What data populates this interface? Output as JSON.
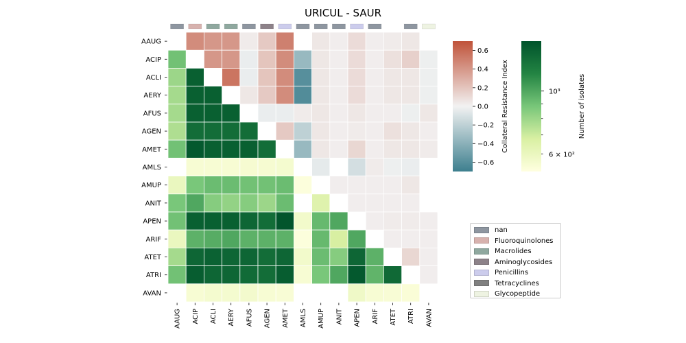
{
  "chart_data": {
    "type": "heatmap",
    "title": "URICUL - SAUR",
    "labels": [
      "AAUG",
      "ACIP",
      "ACLI",
      "AERY",
      "AFUS",
      "AGEN",
      "AMET",
      "AMLS",
      "AMUP",
      "ANIT",
      "APEN",
      "ARIF",
      "ATET",
      "ATRI",
      "AVAN"
    ],
    "class_strip": [
      "nan",
      "Fluoroquinolones",
      "Macrolides",
      "Macrolides",
      "nan",
      "Aminoglycosides",
      "Penicillins",
      "nan",
      "nan",
      "nan",
      "Penicillins",
      "nan",
      "",
      "nan",
      "Glycopeptide"
    ],
    "class_colors": {
      "nan": "#8e96a0",
      "Fluoroquinolones": "#d7b2ae",
      "Macrolides": "#8fa89f",
      "Aminoglycosides": "#8d8289",
      "Penicillins": "#ccccec",
      "Tetracyclines": "#808080",
      "Glycopeptide": "#eef3e2"
    },
    "upper_cri": [
      [
        null,
        0.45,
        0.4,
        0.4,
        0.03,
        0.18,
        0.5,
        null,
        0.05,
        0.02,
        0.1,
        0.02,
        0.03,
        0.05,
        null
      ],
      [
        null,
        null,
        0.4,
        0.4,
        -0.03,
        0.2,
        0.45,
        -0.35,
        0.05,
        0.02,
        0.1,
        0.02,
        0.08,
        0.15,
        -0.02
      ],
      [
        null,
        null,
        null,
        0.55,
        -0.03,
        0.2,
        0.45,
        -0.6,
        0.05,
        0.02,
        0.1,
        0.02,
        0.05,
        0.05,
        -0.02
      ],
      [
        null,
        null,
        null,
        null,
        0.05,
        0.18,
        0.45,
        -0.62,
        0.05,
        0.02,
        0.1,
        0.02,
        0.05,
        0.05,
        -0.02
      ],
      [
        null,
        null,
        null,
        null,
        null,
        -0.03,
        -0.03,
        0.03,
        0.05,
        0.02,
        0.05,
        0.02,
        0.02,
        -0.02,
        0.05
      ],
      [
        null,
        null,
        null,
        null,
        null,
        null,
        0.18,
        -0.2,
        0.05,
        0.02,
        0.03,
        0.02,
        0.08,
        0.05,
        0.02
      ],
      [
        null,
        null,
        null,
        null,
        null,
        null,
        null,
        -0.35,
        0.05,
        0.02,
        0.12,
        0.02,
        0.05,
        0.05,
        0.03
      ],
      [
        null,
        null,
        null,
        null,
        null,
        null,
        null,
        null,
        -0.05,
        null,
        -0.12,
        0.03,
        -0.02,
        -0.03,
        null
      ],
      [
        null,
        null,
        null,
        null,
        null,
        null,
        null,
        null,
        null,
        0.02,
        0.02,
        0.02,
        0.02,
        0.05,
        null
      ],
      [
        null,
        null,
        null,
        null,
        null,
        null,
        null,
        null,
        null,
        null,
        0.02,
        0.02,
        0.02,
        0.02,
        null
      ],
      [
        null,
        null,
        null,
        null,
        null,
        null,
        null,
        null,
        null,
        null,
        null,
        0.02,
        0.03,
        0.03,
        0.02
      ],
      [
        null,
        null,
        null,
        null,
        null,
        null,
        null,
        null,
        null,
        null,
        null,
        null,
        0.02,
        0.02,
        0.02
      ],
      [
        null,
        null,
        null,
        null,
        null,
        null,
        null,
        null,
        null,
        null,
        null,
        null,
        null,
        0.12,
        0.02
      ],
      [
        null,
        null,
        null,
        null,
        null,
        null,
        null,
        null,
        null,
        null,
        null,
        null,
        null,
        null,
        0.02
      ],
      [
        null,
        null,
        null,
        null,
        null,
        null,
        null,
        null,
        null,
        null,
        null,
        null,
        null,
        null,
        null
      ]
    ],
    "lower_isolates": [
      [
        null,
        null,
        null,
        null,
        null,
        null,
        null,
        null,
        null,
        null,
        null,
        null,
        null,
        null,
        null
      ],
      [
        900,
        null,
        null,
        null,
        null,
        null,
        null,
        null,
        null,
        null,
        null,
        null,
        null,
        null,
        null
      ],
      [
        800,
        1400,
        null,
        null,
        null,
        null,
        null,
        null,
        null,
        null,
        null,
        null,
        null,
        null,
        null
      ],
      [
        780,
        1400,
        1400,
        null,
        null,
        null,
        null,
        null,
        null,
        null,
        null,
        null,
        null,
        null,
        null
      ],
      [
        780,
        1400,
        1400,
        1400,
        null,
        null,
        null,
        null,
        null,
        null,
        null,
        null,
        null,
        null,
        null
      ],
      [
        760,
        1300,
        1300,
        1300,
        1300,
        null,
        null,
        null,
        null,
        null,
        null,
        null,
        null,
        null,
        null
      ],
      [
        900,
        1450,
        1400,
        1400,
        1400,
        1300,
        null,
        null,
        null,
        null,
        null,
        null,
        null,
        null,
        null
      ],
      [
        null,
        550,
        550,
        550,
        555,
        555,
        560,
        null,
        null,
        null,
        null,
        null,
        null,
        null,
        null
      ],
      [
        600,
        880,
        920,
        920,
        900,
        900,
        920,
        530,
        null,
        null,
        null,
        null,
        null,
        null,
        null
      ],
      [
        880,
        1000,
        850,
        820,
        850,
        800,
        920,
        null,
        650,
        null,
        null,
        null,
        null,
        null,
        null
      ],
      [
        900,
        1400,
        1400,
        1400,
        1350,
        1300,
        1480,
        570,
        930,
        1000,
        null,
        null,
        null,
        null,
        null
      ],
      [
        600,
        960,
        980,
        1000,
        960,
        960,
        960,
        530,
        930,
        680,
        1000,
        null,
        null,
        null,
        null
      ],
      [
        780,
        1350,
        1380,
        1350,
        1350,
        1300,
        1350,
        570,
        920,
        850,
        1350,
        960,
        null,
        null,
        null
      ],
      [
        900,
        1420,
        1350,
        1350,
        1320,
        1300,
        1420,
        550,
        880,
        1000,
        1450,
        950,
        1330,
        null,
        null
      ],
      [
        null,
        550,
        560,
        560,
        565,
        550,
        545,
        null,
        null,
        null,
        580,
        550,
        545,
        540,
        null
      ]
    ],
    "cri_colorbar": {
      "label": "Collateral Resistance Index",
      "range": [
        -0.7,
        0.7
      ],
      "ticks": [
        "0.6",
        "0.4",
        "0.2",
        "0.0",
        "−0.2",
        "−0.4",
        "−0.6"
      ]
    },
    "isolates_colorbar": {
      "label": "Number of isolates",
      "scale": "log",
      "range": [
        520,
        1500
      ],
      "tick_major": "10³",
      "tick_minor": "6 × 10²"
    },
    "legend": [
      "nan",
      "Fluoroquinolones",
      "Macrolides",
      "Aminoglycosides",
      "Penicillins",
      "Tetracyclines",
      "Glycopeptide"
    ]
  }
}
